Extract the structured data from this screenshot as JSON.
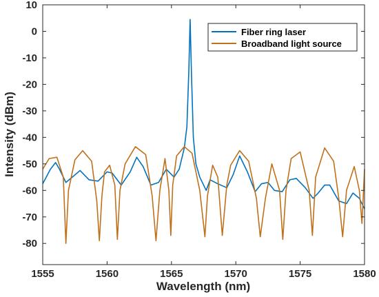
{
  "chart_data": {
    "type": "line",
    "title": "",
    "xlabel": "Wavelength (nm)",
    "ylabel": "Intensity (dBm)",
    "xlim": [
      1555,
      1580
    ],
    "ylim": [
      -88,
      10
    ],
    "xticks": [
      1555,
      1560,
      1565,
      1570,
      1575,
      1580
    ],
    "yticks": [
      10,
      0,
      -10,
      -20,
      -30,
      -40,
      -50,
      -60,
      -70,
      -80
    ],
    "grid": false,
    "legend_position": "top-right",
    "series": [
      {
        "name": "Fiber ring laser",
        "color": "#0072BD",
        "x": [
          1555.0,
          1555.6,
          1556.0,
          1556.3,
          1556.8,
          1557.3,
          1557.9,
          1558.6,
          1559.3,
          1560.0,
          1560.4,
          1561.1,
          1561.8,
          1562.3,
          1562.8,
          1563.4,
          1564.0,
          1564.6,
          1565.2,
          1565.6,
          1566.0,
          1566.2,
          1566.35,
          1566.45,
          1566.55,
          1566.7,
          1566.9,
          1567.2,
          1567.7,
          1568.0,
          1568.6,
          1569.3,
          1569.8,
          1570.3,
          1570.9,
          1571.5,
          1572.0,
          1572.5,
          1573.0,
          1573.6,
          1574.2,
          1574.7,
          1575.4,
          1576.0,
          1576.4,
          1576.9,
          1577.3,
          1578.0,
          1578.6,
          1579.1,
          1579.6,
          1580.0
        ],
        "y": [
          -57.5,
          -52.0,
          -49.5,
          -52.0,
          -57.0,
          -55.0,
          -52.5,
          -56.0,
          -56.5,
          -53.0,
          -53.5,
          -58.0,
          -53.0,
          -47.5,
          -51.0,
          -58.0,
          -57.0,
          -52.0,
          -55.0,
          -52.0,
          -44.0,
          -36.0,
          -15.0,
          4.5,
          -15.0,
          -40.0,
          -50.0,
          -55.0,
          -60.0,
          -56.0,
          -57.5,
          -59.0,
          -54.0,
          -47.0,
          -53.0,
          -60.5,
          -57.5,
          -57.0,
          -60.0,
          -60.5,
          -56.0,
          -55.5,
          -59.0,
          -63.0,
          -61.0,
          -58.0,
          -58.0,
          -64.0,
          -65.0,
          -61.0,
          -63.0,
          -67.0
        ]
      },
      {
        "name": "Broadband light source",
        "color": "#C0701A",
        "x": [
          1555.0,
          1555.5,
          1556.1,
          1556.6,
          1556.8,
          1557.0,
          1557.5,
          1558.1,
          1558.8,
          1559.2,
          1559.4,
          1559.6,
          1559.8,
          1560.2,
          1560.6,
          1560.8,
          1561.0,
          1561.4,
          1562.2,
          1563.0,
          1563.5,
          1563.8,
          1564.1,
          1564.5,
          1564.8,
          1564.95,
          1565.1,
          1565.4,
          1566.0,
          1566.6,
          1567.2,
          1567.6,
          1567.8,
          1568.2,
          1568.6,
          1568.95,
          1569.3,
          1569.6,
          1570.3,
          1571.0,
          1571.6,
          1571.9,
          1572.3,
          1572.8,
          1573.4,
          1573.65,
          1573.9,
          1574.3,
          1575.0,
          1575.7,
          1575.95,
          1576.2,
          1576.9,
          1577.6,
          1578.0,
          1578.3,
          1578.6,
          1579.2,
          1579.6,
          1579.8,
          1580.0
        ],
        "y": [
          -52.0,
          -48.0,
          -47.5,
          -55.0,
          -80.0,
          -60.0,
          -48.5,
          -45.0,
          -49.0,
          -64.0,
          -79.0,
          -62.0,
          -53.0,
          -50.5,
          -58.0,
          -78.5,
          -60.0,
          -50.0,
          -43.5,
          -46.5,
          -62.0,
          -79.0,
          -60.0,
          -48.0,
          -60.0,
          -77.0,
          -58.0,
          -47.0,
          -43.5,
          -46.0,
          -60.0,
          -77.5,
          -62.0,
          -50.5,
          -55.0,
          -77.0,
          -58.0,
          -50.5,
          -45.0,
          -49.0,
          -63.0,
          -77.5,
          -63.0,
          -50.0,
          -60.0,
          -78.5,
          -60.0,
          -48.0,
          -45.5,
          -60.0,
          -77.0,
          -55.0,
          -44.0,
          -49.0,
          -63.0,
          -77.5,
          -60.0,
          -51.0,
          -60.0,
          -72.5,
          -52.0
        ]
      }
    ]
  }
}
